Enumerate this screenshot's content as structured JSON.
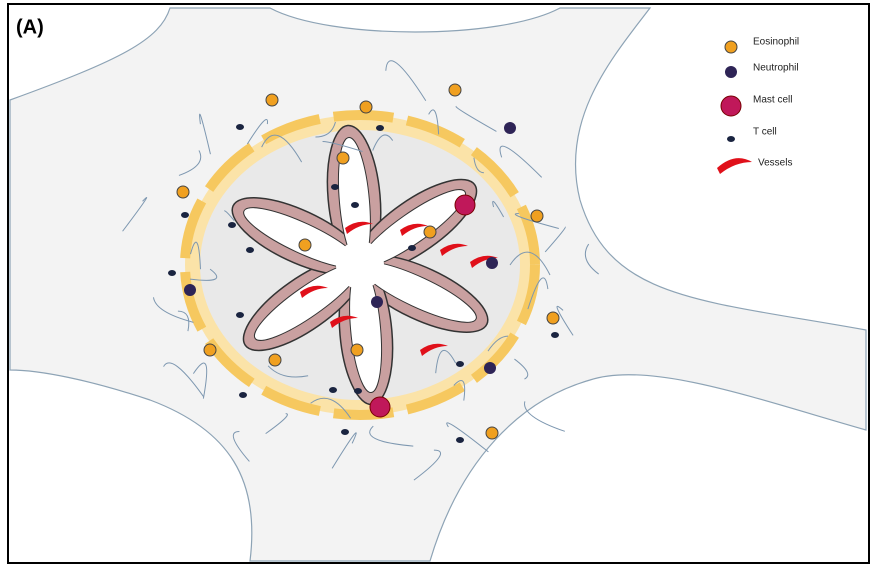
{
  "panel_label": "(A)",
  "legend": {
    "items": [
      "Eosinophil",
      "Neutrophil",
      "Mast cell",
      "T cell",
      "Vessels"
    ]
  }
}
